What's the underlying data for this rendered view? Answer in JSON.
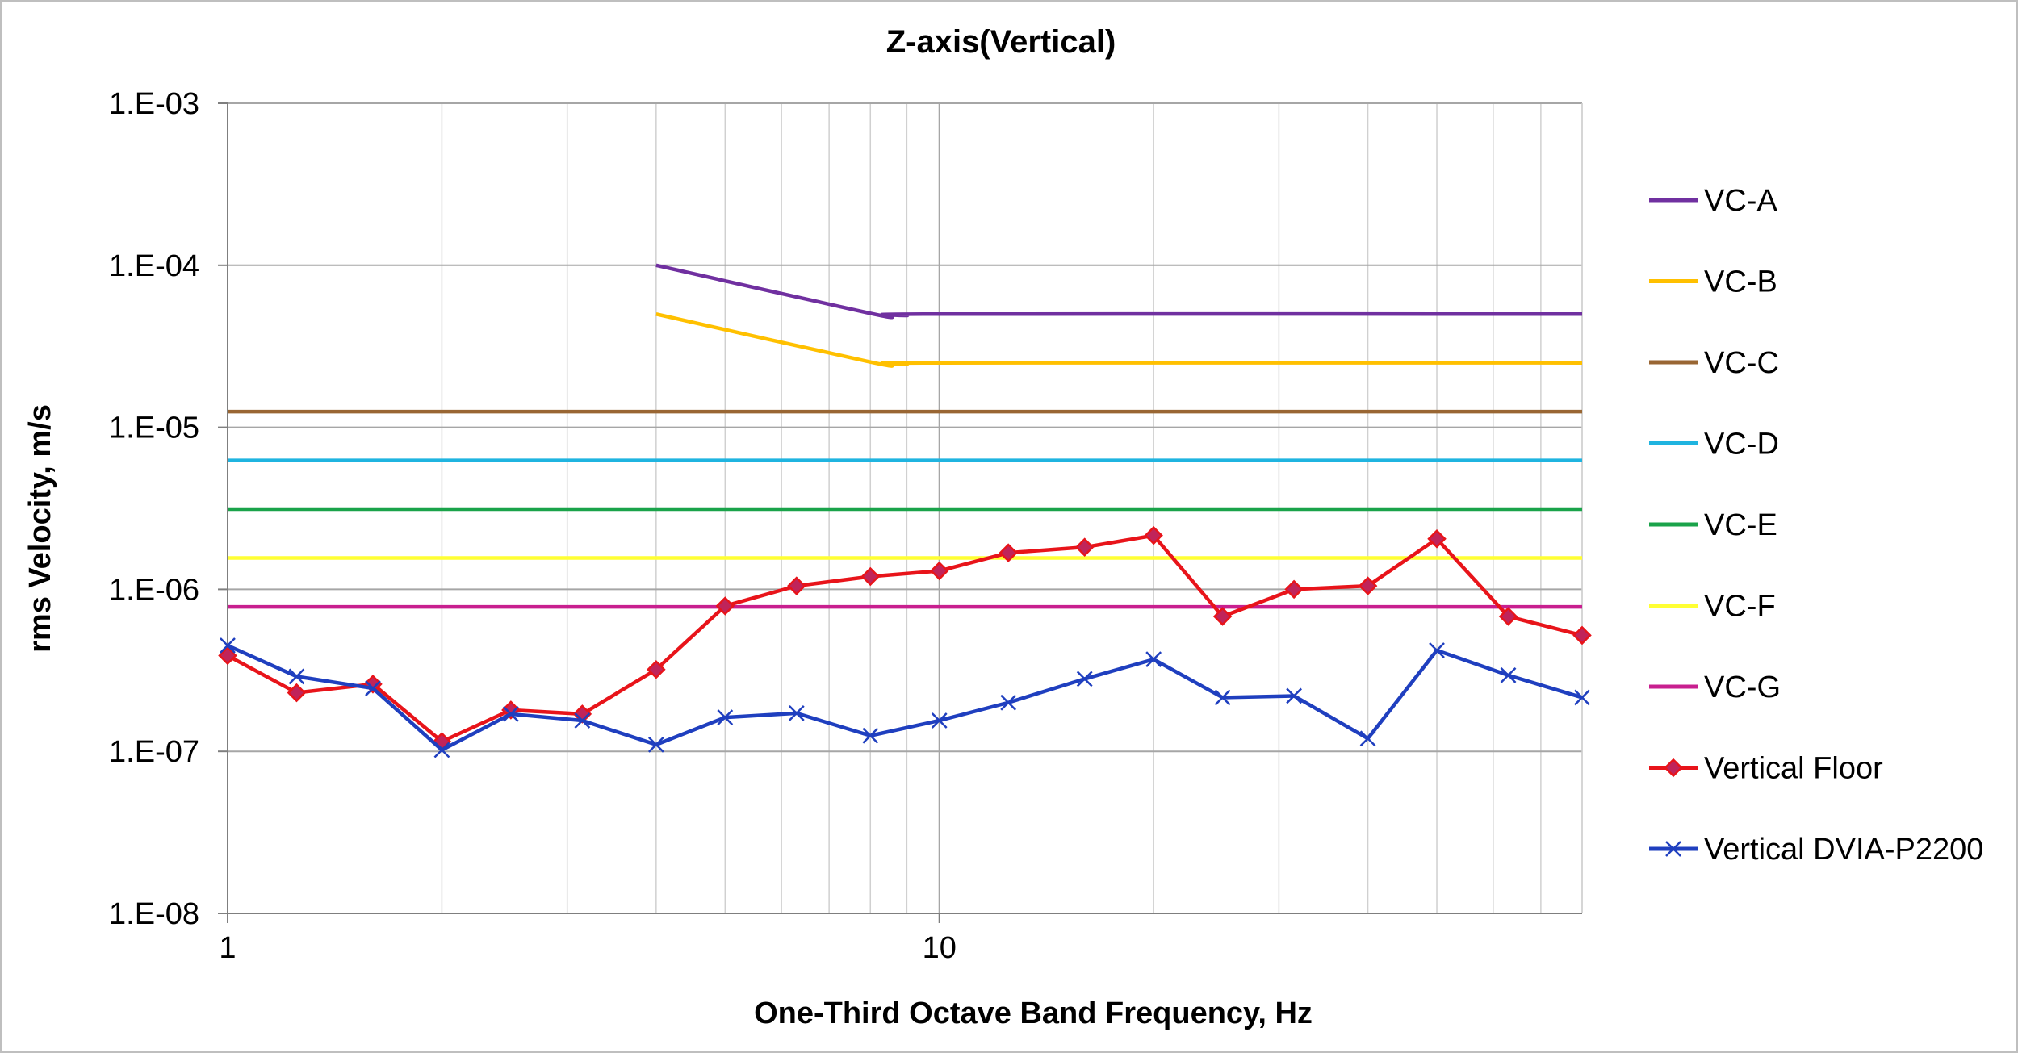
{
  "chart_data": {
    "type": "line",
    "title": "Z-axis(Vertical)",
    "xlabel": "One-Third Octave Band Frequency, Hz",
    "ylabel": "rms Velocity, m/s",
    "x_scale": "log",
    "y_scale": "log",
    "xlim": [
      1,
      80
    ],
    "ylim": [
      1e-08,
      0.001
    ],
    "grid": true,
    "legend_position": "right",
    "x_ticks": [
      {
        "value": 1,
        "label": "1"
      },
      {
        "value": 10,
        "label": "10"
      }
    ],
    "y_ticks": [
      {
        "value": 0.001,
        "label": "1.E-03"
      },
      {
        "value": 0.0001,
        "label": "1.E-04"
      },
      {
        "value": 1e-05,
        "label": "1.E-05"
      },
      {
        "value": 1e-06,
        "label": "1.E-06"
      },
      {
        "value": 1e-07,
        "label": "1.E-07"
      },
      {
        "value": 1e-08,
        "label": "1.E-08"
      }
    ],
    "series": [
      {
        "name": "VC-A",
        "color": "#7030a0",
        "marker": "none",
        "x": [
          4,
          8,
          8.5,
          9,
          10,
          80
        ],
        "y": [
          0.0001,
          5.05e-05,
          4.95e-05,
          4.9e-05,
          5e-05,
          5e-05
        ]
      },
      {
        "name": "VC-B",
        "color": "#ffc000",
        "marker": "none",
        "x": [
          4,
          8,
          8.5,
          9,
          10,
          80
        ],
        "y": [
          5e-05,
          2.53e-05,
          2.48e-05,
          2.46e-05,
          2.5e-05,
          2.5e-05
        ]
      },
      {
        "name": "VC-C",
        "color": "#996633",
        "marker": "none",
        "x": [
          1,
          80
        ],
        "y": [
          1.25e-05,
          1.25e-05
        ]
      },
      {
        "name": "VC-D",
        "color": "#1fb4e0",
        "marker": "none",
        "x": [
          1,
          80
        ],
        "y": [
          6.25e-06,
          6.25e-06
        ]
      },
      {
        "name": "VC-E",
        "color": "#1aa34a",
        "marker": "none",
        "x": [
          1,
          80
        ],
        "y": [
          3.125e-06,
          3.125e-06
        ]
      },
      {
        "name": "VC-F",
        "color": "#ffff33",
        "marker": "none",
        "x": [
          1,
          80
        ],
        "y": [
          1.5625e-06,
          1.5625e-06
        ]
      },
      {
        "name": "VC-G",
        "color": "#c81f8f",
        "marker": "none",
        "x": [
          1,
          80
        ],
        "y": [
          7.8e-07,
          7.8e-07
        ]
      },
      {
        "name": "Vertical Floor",
        "color": "#e8141a",
        "marker": "diamond",
        "marker_fill": "#c0245a",
        "x": [
          1,
          1.25,
          1.6,
          2,
          2.5,
          3.15,
          4,
          5,
          6.3,
          8,
          10,
          12.5,
          16,
          20,
          25,
          31.5,
          40,
          50,
          63,
          80
        ],
        "y": [
          3.9e-07,
          2.3e-07,
          2.6e-07,
          1.15e-07,
          1.8e-07,
          1.7e-07,
          3.2e-07,
          7.9e-07,
          1.05e-06,
          1.2e-06,
          1.3e-06,
          1.68e-06,
          1.82e-06,
          2.15e-06,
          6.8e-07,
          1e-06,
          1.05e-06,
          2.05e-06,
          6.8e-07,
          5.2e-07
        ]
      },
      {
        "name": "Vertical DVIA-P2200",
        "color": "#1f3fbf",
        "marker": "x",
        "x": [
          1,
          1.25,
          1.6,
          2,
          2.5,
          3.15,
          4,
          5,
          6.3,
          8,
          10,
          12.5,
          16,
          20,
          25,
          31.5,
          40,
          50,
          63,
          80
        ],
        "y": [
          4.5e-07,
          2.9e-07,
          2.45e-07,
          1.02e-07,
          1.7e-07,
          1.55e-07,
          1.1e-07,
          1.62e-07,
          1.72e-07,
          1.25e-07,
          1.55e-07,
          2e-07,
          2.8e-07,
          3.7e-07,
          2.15e-07,
          2.2e-07,
          1.2e-07,
          4.2e-07,
          2.95e-07,
          2.15e-07
        ]
      }
    ]
  }
}
